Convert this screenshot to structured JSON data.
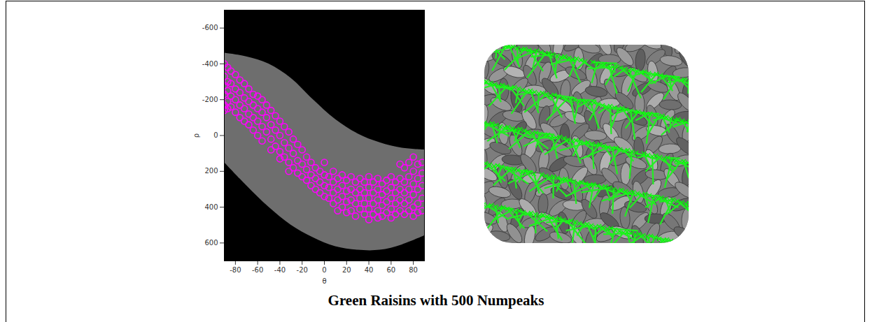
{
  "chart_data": {
    "type": "scatter",
    "title": "Green Raisins with 500 Numpeaks",
    "x_label": "θ",
    "y_label": "ρ",
    "xlim": [
      -90,
      90
    ],
    "ylim": [
      -700,
      700
    ],
    "xticks": [
      -80,
      -60,
      -40,
      -20,
      0,
      20,
      40,
      60,
      80
    ],
    "yticks": [
      -600,
      -400,
      -200,
      0,
      200,
      400,
      600
    ],
    "color": "#ff00ff",
    "marker": "circle",
    "band": {
      "x": [
        -90,
        -70,
        -50,
        -30,
        -10,
        10,
        30,
        50,
        70,
        90
      ],
      "rho_min": [
        -460,
        -440,
        -400,
        -320,
        -200,
        -90,
        -10,
        40,
        70,
        80
      ],
      "rho_max": [
        150,
        280,
        400,
        500,
        570,
        620,
        640,
        640,
        610,
        560
      ]
    },
    "x": [
      -90,
      -90,
      -90,
      -90,
      -90,
      -90,
      -87,
      -87,
      -87,
      -87,
      -87,
      -84,
      -84,
      -84,
      -84,
      -80,
      -80,
      -80,
      -80,
      -76,
      -76,
      -76,
      -76,
      -72,
      -72,
      -72,
      -72,
      -68,
      -68,
      -68,
      -68,
      -64,
      -64,
      -64,
      -64,
      -60,
      -60,
      -60,
      -60,
      -56,
      -56,
      -56,
      -56,
      -52,
      -52,
      -52,
      -48,
      -48,
      -48,
      -48,
      -44,
      -44,
      -44,
      -40,
      -40,
      -40,
      -40,
      -36,
      -36,
      -36,
      -32,
      -32,
      -32,
      -32,
      -28,
      -28,
      -28,
      -24,
      -24,
      -24,
      -20,
      -20,
      -20,
      -16,
      -16,
      -16,
      -12,
      -12,
      -12,
      -8,
      -8,
      -8,
      -4,
      -4,
      -4,
      0,
      0,
      0,
      0,
      4,
      4,
      4,
      8,
      8,
      8,
      8,
      12,
      12,
      12,
      12,
      16,
      16,
      16,
      16,
      20,
      20,
      20,
      20,
      24,
      24,
      24,
      24,
      28,
      28,
      28,
      28,
      32,
      32,
      32,
      32,
      36,
      36,
      36,
      36,
      40,
      40,
      40,
      40,
      40,
      44,
      44,
      44,
      44,
      48,
      48,
      48,
      48,
      48,
      52,
      52,
      52,
      52,
      56,
      56,
      56,
      56,
      60,
      60,
      60,
      60,
      60,
      64,
      64,
      64,
      64,
      68,
      68,
      68,
      68,
      68,
      72,
      72,
      72,
      72,
      72,
      76,
      76,
      76,
      76,
      76,
      80,
      80,
      80,
      80,
      80,
      80,
      84,
      84,
      84,
      84,
      84,
      88,
      88,
      88,
      88,
      88
    ],
    "values": [
      -400,
      -330,
      -280,
      -230,
      -170,
      -140,
      -380,
      -300,
      -250,
      -190,
      -150,
      -360,
      -290,
      -220,
      -160,
      -340,
      -260,
      -200,
      -130,
      -310,
      -240,
      -170,
      -100,
      -290,
      -210,
      -150,
      -80,
      -260,
      -190,
      -120,
      -60,
      -230,
      -170,
      -100,
      -30,
      -220,
      -150,
      -80,
      0,
      -200,
      -130,
      -50,
      30,
      -170,
      -100,
      -20,
      -140,
      -60,
      20,
      80,
      -110,
      -30,
      60,
      -80,
      0,
      90,
      130,
      -50,
      40,
      120,
      -20,
      70,
      150,
      200,
      20,
      100,
      180,
      50,
      140,
      210,
      80,
      160,
      230,
      120,
      190,
      250,
      150,
      220,
      280,
      180,
      240,
      300,
      200,
      260,
      320,
      150,
      220,
      280,
      340,
      230,
      290,
      350,
      200,
      260,
      320,
      380,
      240,
      300,
      360,
      420,
      220,
      280,
      340,
      400,
      250,
      310,
      370,
      430,
      230,
      300,
      360,
      420,
      260,
      320,
      380,
      450,
      240,
      300,
      350,
      410,
      260,
      320,
      380,
      440,
      230,
      290,
      350,
      410,
      470,
      260,
      320,
      380,
      440,
      240,
      300,
      360,
      420,
      460,
      270,
      330,
      390,
      450,
      250,
      310,
      370,
      430,
      230,
      290,
      350,
      410,
      460,
      260,
      320,
      380,
      440,
      160,
      240,
      300,
      360,
      420,
      180,
      260,
      320,
      380,
      440,
      150,
      230,
      300,
      360,
      420,
      120,
      200,
      270,
      330,
      400,
      450,
      160,
      240,
      300,
      380,
      430,
      150,
      210,
      280,
      350,
      420
    ]
  }
}
